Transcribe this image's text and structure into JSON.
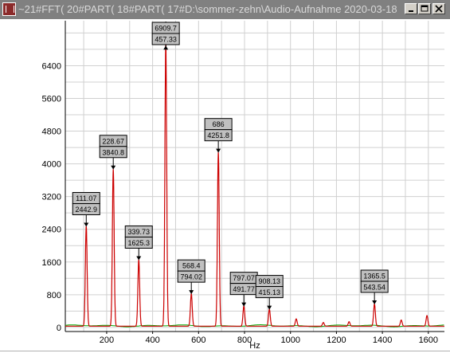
{
  "window": {
    "title": "~21#FFT( 20#PART( 18#PART( 17#D:\\sommer-zehn\\Audio-Aufnahme 2020-03-18 ..."
  },
  "chart_data": {
    "type": "line",
    "xlabel": "Hz",
    "ylabel": "",
    "xlim": [
      20,
      1670
    ],
    "ylim": [
      -100,
      7500
    ],
    "x_ticks": [
      200,
      400,
      600,
      800,
      1000,
      1200,
      1400,
      1600
    ],
    "y_ticks": [
      0,
      800,
      1600,
      2400,
      3200,
      4000,
      4800,
      5600,
      6400
    ],
    "grid": true,
    "series": [
      {
        "color": "#cc0000",
        "peaks": [
          {
            "x": 111.07,
            "y": 2442.9
          },
          {
            "x": 228.67,
            "y": 3840.8
          },
          {
            "x": 339.73,
            "y": 1625.3
          },
          {
            "x": 457.33,
            "y": 6909.7
          },
          {
            "x": 568.4,
            "y": 794.02
          },
          {
            "x": 686,
            "y": 4251.8
          },
          {
            "x": 797.07,
            "y": 491.77
          },
          {
            "x": 908.13,
            "y": 415.13
          },
          {
            "x": 1025,
            "y": 180
          },
          {
            "x": 1143,
            "y": 90
          },
          {
            "x": 1255,
            "y": 110
          },
          {
            "x": 1365.5,
            "y": 543.54
          },
          {
            "x": 1482,
            "y": 150
          },
          {
            "x": 1594,
            "y": 260
          }
        ]
      },
      {
        "color": "#00aa00",
        "baseline": 40
      }
    ],
    "annotations": [
      {
        "top": "111.07",
        "bottom": "2442.9",
        "x": 111.07,
        "y": 2442.9
      },
      {
        "top": "228.67",
        "bottom": "3840.8",
        "x": 228.67,
        "y": 3840.8
      },
      {
        "top": "339.73",
        "bottom": "1625.3",
        "x": 339.73,
        "y": 1625.3
      },
      {
        "top": "6909.7",
        "bottom": "457.33",
        "x": 457.33,
        "y": 6909.7
      },
      {
        "top": "568.4",
        "bottom": "794.02",
        "x": 568.4,
        "y": 794.02
      },
      {
        "top": "686",
        "bottom": "4251.8",
        "x": 686,
        "y": 4251.8
      },
      {
        "top": "797.07",
        "bottom": "491.77",
        "x": 797.07,
        "y": 491.77
      },
      {
        "top": "908.13",
        "bottom": "415.13",
        "x": 908.13,
        "y": 415.13
      },
      {
        "top": "1365.5",
        "bottom": "543.54",
        "x": 1365.5,
        "y": 543.54
      }
    ]
  }
}
